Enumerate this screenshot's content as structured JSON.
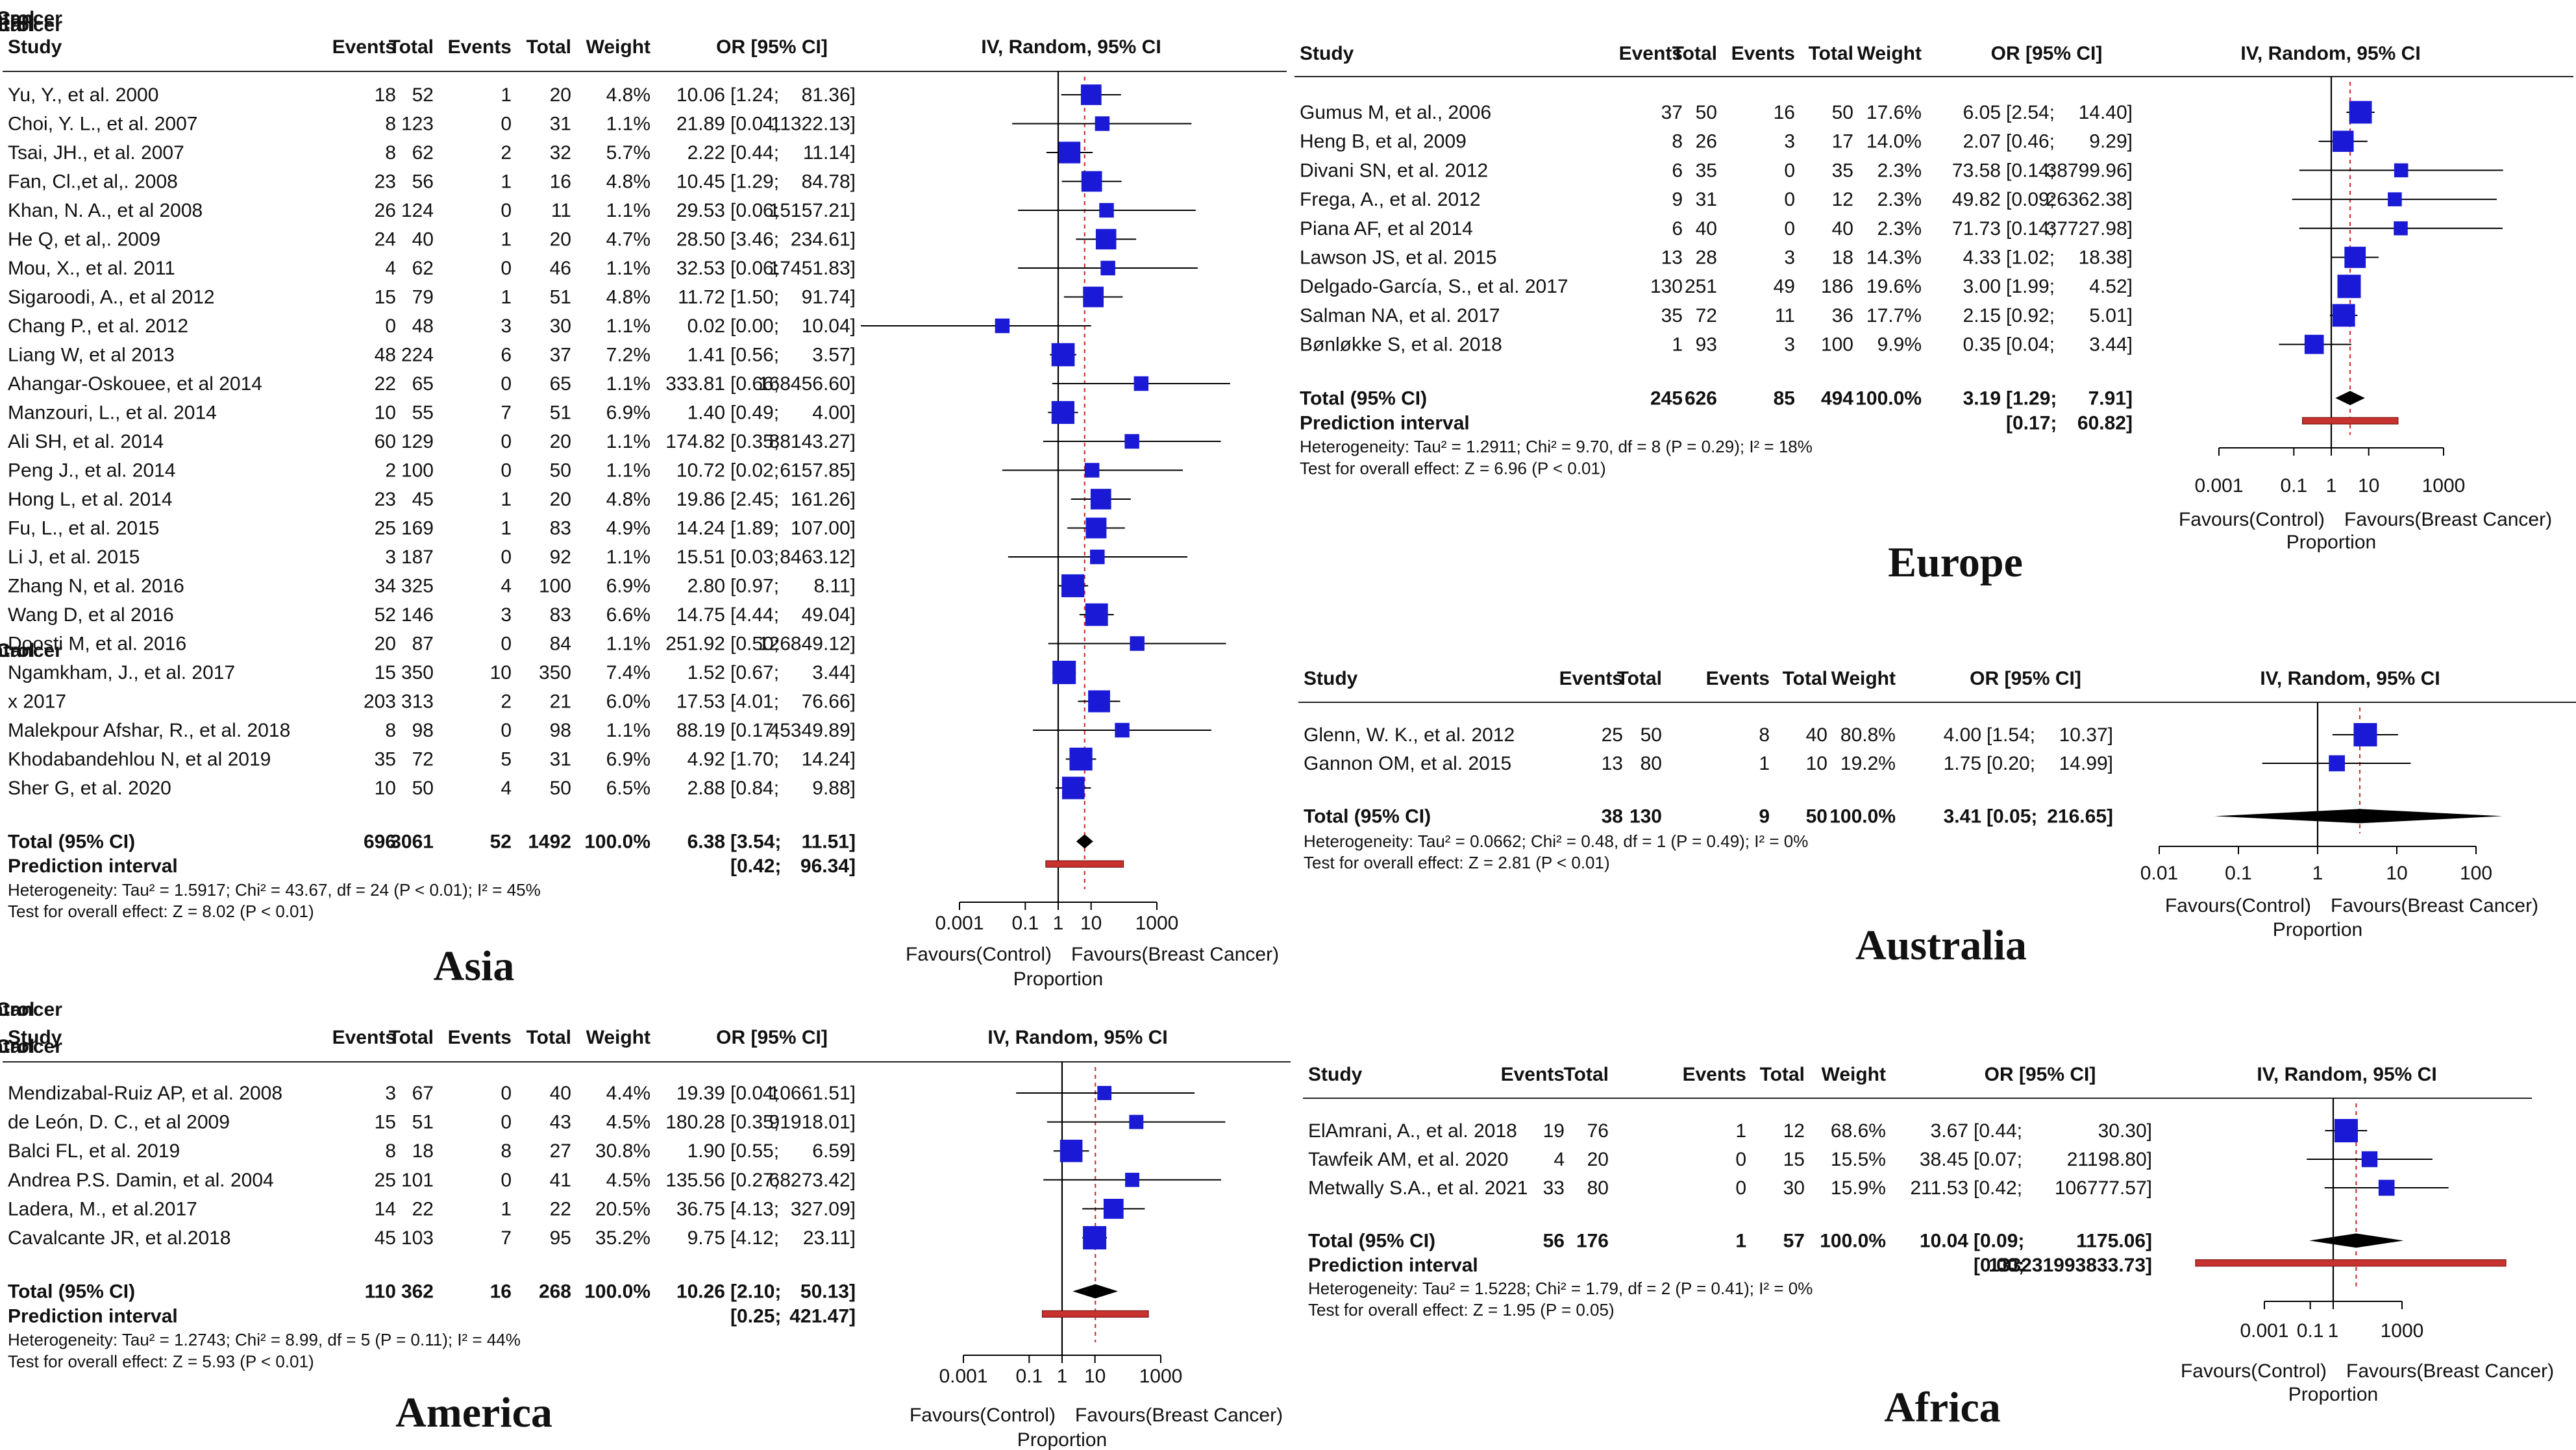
{
  "figure": {
    "column_headers": {
      "study": "Study",
      "bc": "Beast Cancer",
      "ctrl": "Control",
      "events": "Events",
      "total": "Total",
      "weight": "Weight",
      "or": "OR [95% CI]",
      "method": "IV, Random, 95% CI",
      "axis_label_left": "Favours(Control)",
      "axis_label_right": "Favours(Breast Cancer)",
      "axis_caption": "Proportion"
    },
    "colors": {
      "box": "#1a1ad6",
      "diamond": "#000000",
      "prediction": "#c8332f",
      "null_line": "#000000",
      "ref_line": "#cc3333"
    }
  },
  "chart_data": [
    {
      "type": "forest",
      "region": "Asia",
      "xscale": "log",
      "ticks": [
        "0.001",
        "0.1",
        "1",
        "10",
        "1000"
      ],
      "studies": [
        {
          "name": "Yu, Y., et al. 2000",
          "bc_events": "18",
          "bc_total": "52",
          "ctrl_events": "1",
          "ctrl_total": "20",
          "weight": "4.8%",
          "or": "10.06",
          "lo": "1.24",
          "hi": "81.36"
        },
        {
          "name": "Choi, Y. L., et al. 2007",
          "bc_events": "8",
          "bc_total": "123",
          "ctrl_events": "0",
          "ctrl_total": "31",
          "weight": "1.1%",
          "or": "21.89",
          "lo": "0.04",
          "hi": "11322.13"
        },
        {
          "name": "Tsai, JH., et al. 2007",
          "bc_events": "8",
          "bc_total": "62",
          "ctrl_events": "2",
          "ctrl_total": "32",
          "weight": "5.7%",
          "or": "2.22",
          "lo": "0.44",
          "hi": "11.14"
        },
        {
          "name": "Fan, Cl.,et al,. 2008",
          "bc_events": "23",
          "bc_total": "56",
          "ctrl_events": "1",
          "ctrl_total": "16",
          "weight": "4.8%",
          "or": "10.45",
          "lo": "1.29",
          "hi": "84.78"
        },
        {
          "name": "Khan, N. A., et al 2008",
          "bc_events": "26",
          "bc_total": "124",
          "ctrl_events": "0",
          "ctrl_total": "11",
          "weight": "1.1%",
          "or": "29.53",
          "lo": "0.06",
          "hi": "15157.21"
        },
        {
          "name": "He Q, et al,. 2009",
          "bc_events": "24",
          "bc_total": "40",
          "ctrl_events": "1",
          "ctrl_total": "20",
          "weight": "4.7%",
          "or": "28.50",
          "lo": "3.46",
          "hi": "234.61"
        },
        {
          "name": "Mou, X., et al. 2011",
          "bc_events": "4",
          "bc_total": "62",
          "ctrl_events": "0",
          "ctrl_total": "46",
          "weight": "1.1%",
          "or": "32.53",
          "lo": "0.06",
          "hi": "17451.83"
        },
        {
          "name": "Sigaroodi, A., et al 2012",
          "bc_events": "15",
          "bc_total": "79",
          "ctrl_events": "1",
          "ctrl_total": "51",
          "weight": "4.8%",
          "or": "11.72",
          "lo": "1.50",
          "hi": "91.74"
        },
        {
          "name": "Chang P., et al. 2012",
          "bc_events": "0",
          "bc_total": "48",
          "ctrl_events": "3",
          "ctrl_total": "30",
          "weight": "1.1%",
          "or": "0.02",
          "lo": "0.00",
          "hi": "10.04"
        },
        {
          "name": "Liang W, et al 2013",
          "bc_events": "48",
          "bc_total": "224",
          "ctrl_events": "6",
          "ctrl_total": "37",
          "weight": "7.2%",
          "or": "1.41",
          "lo": "0.56",
          "hi": "3.57"
        },
        {
          "name": "Ahangar-Oskouee, et al 2014",
          "bc_events": "22",
          "bc_total": "65",
          "ctrl_events": "0",
          "ctrl_total": "65",
          "weight": "1.1%",
          "or": "333.81",
          "lo": "0.66",
          "hi": "168456.60"
        },
        {
          "name": "Manzouri, L., et al. 2014",
          "bc_events": "10",
          "bc_total": "55",
          "ctrl_events": "7",
          "ctrl_total": "51",
          "weight": "6.9%",
          "or": "1.40",
          "lo": "0.49",
          "hi": "4.00"
        },
        {
          "name": "Ali SH, et al. 2014",
          "bc_events": "60",
          "bc_total": "129",
          "ctrl_events": "0",
          "ctrl_total": "20",
          "weight": "1.1%",
          "or": "174.82",
          "lo": "0.35",
          "hi": "88143.27"
        },
        {
          "name": "Peng J., et al. 2014",
          "bc_events": "2",
          "bc_total": "100",
          "ctrl_events": "0",
          "ctrl_total": "50",
          "weight": "1.1%",
          "or": "10.72",
          "lo": "0.02",
          "hi": "6157.85"
        },
        {
          "name": "Hong L, et al. 2014",
          "bc_events": "23",
          "bc_total": "45",
          "ctrl_events": "1",
          "ctrl_total": "20",
          "weight": "4.8%",
          "or": "19.86",
          "lo": "2.45",
          "hi": "161.26"
        },
        {
          "name": "Fu, L., et al. 2015",
          "bc_events": "25",
          "bc_total": "169",
          "ctrl_events": "1",
          "ctrl_total": "83",
          "weight": "4.9%",
          "or": "14.24",
          "lo": "1.89",
          "hi": "107.00"
        },
        {
          "name": "Li J, et al. 2015",
          "bc_events": "3",
          "bc_total": "187",
          "ctrl_events": "0",
          "ctrl_total": "92",
          "weight": "1.1%",
          "or": "15.51",
          "lo": "0.03",
          "hi": "8463.12"
        },
        {
          "name": "Zhang N, et al. 2016",
          "bc_events": "34",
          "bc_total": "325",
          "ctrl_events": "4",
          "ctrl_total": "100",
          "weight": "6.9%",
          "or": "2.80",
          "lo": "0.97",
          "hi": "8.11"
        },
        {
          "name": "Wang D, et al 2016",
          "bc_events": "52",
          "bc_total": "146",
          "ctrl_events": "3",
          "ctrl_total": "83",
          "weight": "6.6%",
          "or": "14.75",
          "lo": "4.44",
          "hi": "49.04"
        },
        {
          "name": "Doosti M, et al. 2016",
          "bc_events": "20",
          "bc_total": "87",
          "ctrl_events": "0",
          "ctrl_total": "84",
          "weight": "1.1%",
          "or": "251.92",
          "lo": "0.50",
          "hi": "126849.12"
        },
        {
          "name": "Ngamkham, J., et al. 2017",
          "bc_events": "15",
          "bc_total": "350",
          "ctrl_events": "10",
          "ctrl_total": "350",
          "weight": "7.4%",
          "or": "1.52",
          "lo": "0.67",
          "hi": "3.44"
        },
        {
          "name": "x 2017",
          "bc_events": "203",
          "bc_total": "313",
          "ctrl_events": "2",
          "ctrl_total": "21",
          "weight": "6.0%",
          "or": "17.53",
          "lo": "4.01",
          "hi": "76.66"
        },
        {
          "name": "Malekpour Afshar, R., et al. 2018",
          "bc_events": "8",
          "bc_total": "98",
          "ctrl_events": "0",
          "ctrl_total": "98",
          "weight": "1.1%",
          "or": "88.19",
          "lo": "0.17",
          "hi": "45349.89"
        },
        {
          "name": "Khodabandehlou N, et al 2019",
          "bc_events": "35",
          "bc_total": "72",
          "ctrl_events": "5",
          "ctrl_total": "31",
          "weight": "6.9%",
          "or": "4.92",
          "lo": "1.70",
          "hi": "14.24"
        },
        {
          "name": "Sher G, et al. 2020",
          "bc_events": "10",
          "bc_total": "50",
          "ctrl_events": "4",
          "ctrl_total": "50",
          "weight": "6.5%",
          "or": "2.88",
          "lo": "0.84",
          "hi": "9.88"
        }
      ],
      "total": {
        "label": "Total (95% CI)",
        "bc_events": "696",
        "bc_total": "3061",
        "ctrl_events": "52",
        "ctrl_total": "1492",
        "weight": "100.0%",
        "or": "6.38",
        "lo": "3.54",
        "hi": "11.51"
      },
      "prediction": {
        "label": "Prediction interval",
        "lo": "0.42",
        "hi": "96.34"
      },
      "heterogeneity": "Heterogeneity: Tau² = 1.5917; Chi² = 43.67, df = 24 (P < 0.01); I² = 45%",
      "overall_test": "Test for overall effect: Z = 8.02 (P < 0.01)"
    },
    {
      "type": "forest",
      "region": "America",
      "xscale": "log",
      "ticks": [
        "0.001",
        "0.1",
        "1",
        "10",
        "1000"
      ],
      "studies": [
        {
          "name": "Mendizabal-Ruiz AP, et al. 2008",
          "bc_events": "3",
          "bc_total": "67",
          "ctrl_events": "0",
          "ctrl_total": "40",
          "weight": "4.4%",
          "or": "19.39",
          "lo": "0.04",
          "hi": "10661.51"
        },
        {
          "name": "de León, D. C., et al 2009",
          "bc_events": "15",
          "bc_total": "51",
          "ctrl_events": "0",
          "ctrl_total": "43",
          "weight": "4.5%",
          "or": "180.28",
          "lo": "0.35",
          "hi": "91918.01"
        },
        {
          "name": "Balci FL, et al. 2019",
          "bc_events": "8",
          "bc_total": "18",
          "ctrl_events": "8",
          "ctrl_total": "27",
          "weight": "30.8%",
          "or": "1.90",
          "lo": "0.55",
          "hi": "6.59"
        },
        {
          "name": "Andrea P.S. Damin, et al. 2004",
          "bc_events": "25",
          "bc_total": "101",
          "ctrl_events": "0",
          "ctrl_total": "41",
          "weight": "4.5%",
          "or": "135.56",
          "lo": "0.27",
          "hi": "68273.42"
        },
        {
          "name": "Ladera, M., et al.2017",
          "bc_events": "14",
          "bc_total": "22",
          "ctrl_events": "1",
          "ctrl_total": "22",
          "weight": "20.5%",
          "or": "36.75",
          "lo": "4.13",
          "hi": "327.09"
        },
        {
          "name": "Cavalcante JR, et al.2018",
          "bc_events": "45",
          "bc_total": "103",
          "ctrl_events": "7",
          "ctrl_total": "95",
          "weight": "35.2%",
          "or": "9.75",
          "lo": "4.12",
          "hi": "23.11"
        }
      ],
      "total": {
        "label": "Total (95% CI)",
        "bc_events": "110",
        "bc_total": "362",
        "ctrl_events": "16",
        "ctrl_total": "268",
        "weight": "100.0%",
        "or": "10.26",
        "lo": "2.10",
        "hi": "50.13"
      },
      "prediction": {
        "label": "Prediction interval",
        "lo": "0.25",
        "hi": "421.47"
      },
      "heterogeneity": "Heterogeneity: Tau² = 1.2743; Chi² = 8.99, df = 5 (P = 0.11); I² = 44%",
      "overall_test": "Test for overall effect: Z = 5.93 (P < 0.01)"
    },
    {
      "type": "forest",
      "region": "Europe",
      "xscale": "log",
      "ticks": [
        "0.001",
        "0.1",
        "1",
        "10",
        "1000"
      ],
      "studies": [
        {
          "name": "Gumus M, et al., 2006",
          "bc_events": "37",
          "bc_total": "50",
          "ctrl_events": "16",
          "ctrl_total": "50",
          "weight": "17.6%",
          "or": "6.05",
          "lo": "2.54",
          "hi": "14.40"
        },
        {
          "name": "Heng B, et al, 2009",
          "bc_events": "8",
          "bc_total": "26",
          "ctrl_events": "3",
          "ctrl_total": "17",
          "weight": "14.0%",
          "or": "2.07",
          "lo": "0.46",
          "hi": "9.29"
        },
        {
          "name": "Divani SN, et al. 2012",
          "bc_events": "6",
          "bc_total": "35",
          "ctrl_events": "0",
          "ctrl_total": "35",
          "weight": "2.3%",
          "or": "73.58",
          "lo": "0.14",
          "hi": "38799.96"
        },
        {
          "name": "Frega, A., et al. 2012",
          "bc_events": "9",
          "bc_total": "31",
          "ctrl_events": "0",
          "ctrl_total": "12",
          "weight": "2.3%",
          "or": "49.82",
          "lo": "0.09",
          "hi": "26362.38"
        },
        {
          "name": "Piana AF, et al 2014",
          "bc_events": "6",
          "bc_total": "40",
          "ctrl_events": "0",
          "ctrl_total": "40",
          "weight": "2.3%",
          "or": "71.73",
          "lo": "0.14",
          "hi": "37727.98"
        },
        {
          "name": "Lawson JS, et al. 2015",
          "bc_events": "13",
          "bc_total": "28",
          "ctrl_events": "3",
          "ctrl_total": "18",
          "weight": "14.3%",
          "or": "4.33",
          "lo": "1.02",
          "hi": "18.38"
        },
        {
          "name": "Delgado-García, S., et al. 2017",
          "bc_events": "130",
          "bc_total": "251",
          "ctrl_events": "49",
          "ctrl_total": "186",
          "weight": "19.6%",
          "or": "3.00",
          "lo": "1.99",
          "hi": "4.52"
        },
        {
          "name": "Salman NA, et al. 2017",
          "bc_events": "35",
          "bc_total": "72",
          "ctrl_events": "11",
          "ctrl_total": "36",
          "weight": "17.7%",
          "or": "2.15",
          "lo": "0.92",
          "hi": "5.01"
        },
        {
          "name": "Bønløkke S, et al. 2018",
          "bc_events": "1",
          "bc_total": "93",
          "ctrl_events": "3",
          "ctrl_total": "100",
          "weight": "9.9%",
          "or": "0.35",
          "lo": "0.04",
          "hi": "3.44"
        }
      ],
      "total": {
        "label": "Total (95% CI)",
        "bc_events": "245",
        "bc_total": "626",
        "ctrl_events": "85",
        "ctrl_total": "494",
        "weight": "100.0%",
        "or": "3.19",
        "lo": "1.29",
        "hi": "7.91"
      },
      "prediction": {
        "label": "Prediction interval",
        "lo": "0.17",
        "hi": "60.82"
      },
      "heterogeneity": "Heterogeneity: Tau² = 1.2911; Chi² = 9.70, df = 8 (P = 0.29); I² = 18%",
      "overall_test": "Test for overall effect: Z = 6.96 (P < 0.01)"
    },
    {
      "type": "forest",
      "region": "Australia",
      "xscale": "log",
      "ticks": [
        "0.01",
        "0.1",
        "1",
        "10",
        "100"
      ],
      "studies": [
        {
          "name": "Glenn, W. K., et al. 2012",
          "bc_events": "25",
          "bc_total": "50",
          "ctrl_events": "8",
          "ctrl_total": "40",
          "weight": "80.8%",
          "or": "4.00",
          "lo": "1.54",
          "hi": "10.37"
        },
        {
          "name": "Gannon OM, et al. 2015",
          "bc_events": "13",
          "bc_total": "80",
          "ctrl_events": "1",
          "ctrl_total": "10",
          "weight": "19.2%",
          "or": "1.75",
          "lo": "0.20",
          "hi": "14.99"
        }
      ],
      "total": {
        "label": "Total (95% CI)",
        "bc_events": "38",
        "bc_total": "130",
        "ctrl_events": "9",
        "ctrl_total": "50",
        "weight": "100.0%",
        "or": "3.41",
        "lo": "0.05",
        "hi": "216.65"
      },
      "prediction": null,
      "heterogeneity": "Heterogeneity: Tau² = 0.0662; Chi² = 0.48, df = 1 (P = 0.49); I² = 0%",
      "overall_test": "Test for overall effect: Z = 2.81 (P < 0.01)"
    },
    {
      "type": "forest",
      "region": "Africa",
      "xscale": "log",
      "ticks": [
        "0.001",
        "0.1",
        "1",
        "1000"
      ],
      "studies": [
        {
          "name": "ElAmrani, A., et al. 2018",
          "bc_events": "19",
          "bc_total": "76",
          "ctrl_events": "1",
          "ctrl_total": "12",
          "weight": "68.6%",
          "or": "3.67",
          "lo": "0.44",
          "hi": "30.30"
        },
        {
          "name": "Tawfeik AM, et al. 2020",
          "bc_events": "4",
          "bc_total": "20",
          "ctrl_events": "0",
          "ctrl_total": "15",
          "weight": "15.5%",
          "or": "38.45",
          "lo": "0.07",
          "hi": "21198.80"
        },
        {
          "name": "Metwally S.A., et al. 2021",
          "bc_events": "33",
          "bc_total": "80",
          "ctrl_events": "0",
          "ctrl_total": "30",
          "weight": "15.9%",
          "or": "211.53",
          "lo": "0.42",
          "hi": "106777.57"
        }
      ],
      "total": {
        "label": "Total (95% CI)",
        "bc_events": "56",
        "bc_total": "176",
        "ctrl_events": "1",
        "ctrl_total": "57",
        "weight": "100.0%",
        "or": "10.04",
        "lo": "0.09",
        "hi": "1175.06"
      },
      "prediction": {
        "label": "Prediction interval",
        "lo": "0.00",
        "hi": "133231993833.73"
      },
      "heterogeneity": "Heterogeneity: Tau² = 1.5228; Chi² = 1.79, df = 2 (P = 0.41); I² = 0%",
      "overall_test": "Test for overall effect: Z = 1.95 (P = 0.05)"
    }
  ]
}
